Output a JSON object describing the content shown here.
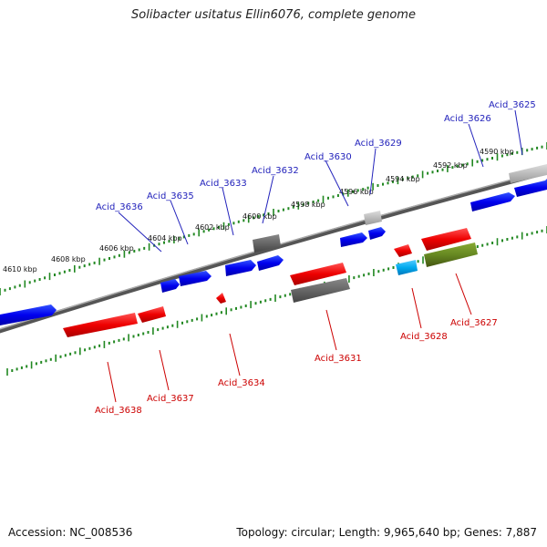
{
  "title": "Solibacter usitatus Ellin6076, complete genome",
  "footer": {
    "accession": "Accession: NC_008536",
    "topology": "Topology: circular; Length: 9,965,640 bp; Genes: 7,887"
  },
  "ticks": {
    "upper": [
      "4590 kbp",
      "4592 kbp",
      "4594 kbp",
      "4596 kbp",
      "4598 kbp",
      "4600 kbp",
      "4602 kbp",
      "4604 kbp",
      "4606 kbp",
      "4608 kbp",
      "4610 kbp"
    ]
  },
  "genes": {
    "forward": [
      "Acid_3625",
      "Acid_3626",
      "Acid_3629",
      "Acid_3630",
      "Acid_3632",
      "Acid_3633",
      "Acid_3635",
      "Acid_3636"
    ],
    "reverse": [
      "Acid_3627",
      "Acid_3628",
      "Acid_3631",
      "Acid_3634",
      "Acid_3637",
      "Acid_3638"
    ]
  },
  "colors": {
    "forward": "#0000ee",
    "reverse": "#ee0000",
    "grey": "#666666",
    "lightgrey": "#bbbbbb",
    "cyan": "#00aaee",
    "olive": "#668822",
    "tick": "#228822",
    "label_forward": "#2222bb",
    "label_reverse": "#cc0000"
  }
}
